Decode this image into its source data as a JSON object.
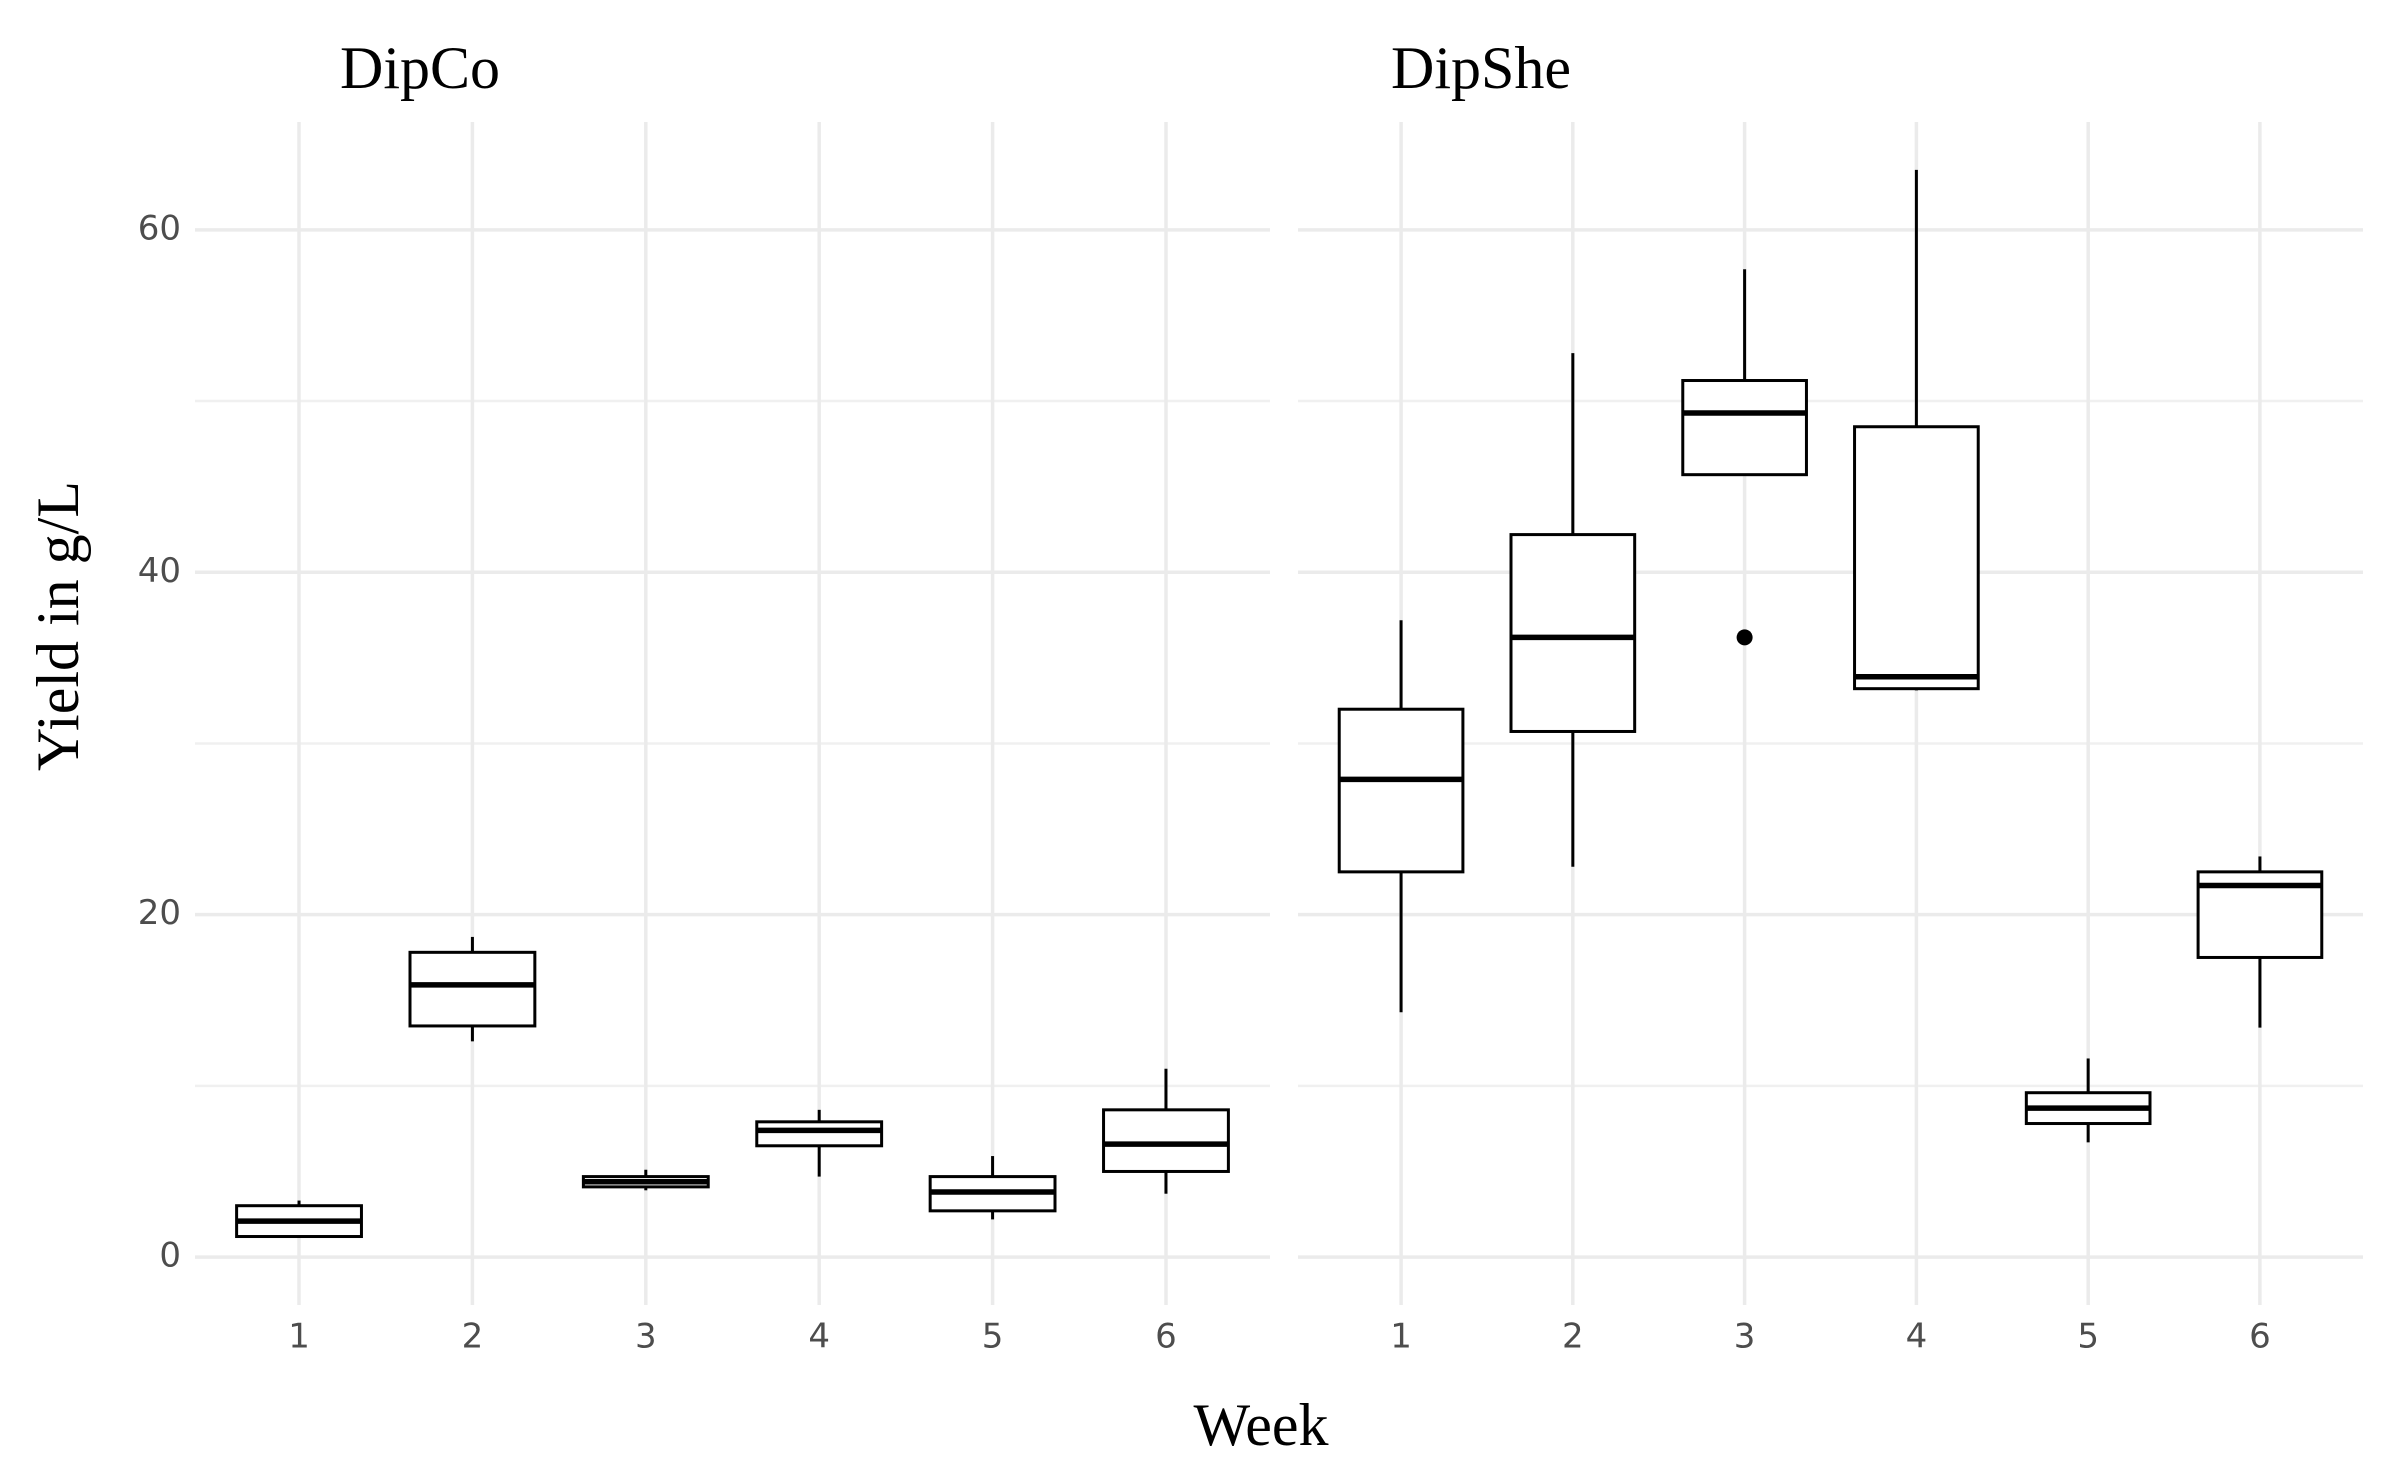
{
  "xlabel": "Week",
  "ylabel": "Yield in g/L",
  "chart_data": [
    {
      "type": "box",
      "title": "DipCo",
      "categories": [
        "1",
        "2",
        "3",
        "4",
        "5",
        "6"
      ],
      "min": [
        1.2,
        12.6,
        3.9,
        4.7,
        2.2,
        3.7
      ],
      "q1": [
        1.2,
        13.5,
        4.1,
        6.5,
        2.7,
        5.0
      ],
      "median": [
        2.1,
        15.9,
        4.4,
        7.4,
        3.8,
        6.6
      ],
      "q3": [
        3.0,
        17.8,
        4.7,
        7.9,
        4.7,
        8.6
      ],
      "max": [
        3.3,
        18.7,
        5.1,
        8.6,
        5.9,
        11.0
      ],
      "outliers": [
        [],
        [],
        [],
        [],
        [],
        []
      ],
      "ylim": [
        -2.8,
        66.3
      ],
      "yticks": [
        0,
        20,
        40,
        60
      ],
      "y_minor_grid": [
        10,
        30,
        50
      ],
      "grid": true,
      "color": "#000000"
    },
    {
      "type": "box",
      "title": "DipShe",
      "categories": [
        "1",
        "2",
        "3",
        "4",
        "5",
        "6"
      ],
      "min": [
        14.3,
        22.8,
        45.7,
        33.1,
        6.7,
        13.4
      ],
      "q1": [
        22.5,
        30.7,
        45.7,
        33.2,
        7.8,
        17.5
      ],
      "median": [
        27.9,
        36.2,
        49.3,
        33.9,
        8.7,
        21.7
      ],
      "q3": [
        32.0,
        42.2,
        51.2,
        48.5,
        9.6,
        22.5
      ],
      "max": [
        37.2,
        52.8,
        57.7,
        63.5,
        11.6,
        23.4
      ],
      "outliers": [
        [],
        [],
        [
          36.2
        ],
        [],
        [],
        []
      ],
      "ylim": [
        -2.8,
        66.3
      ],
      "yticks": [
        0,
        20,
        40,
        60
      ],
      "y_minor_grid": [
        10,
        30,
        50
      ],
      "grid": true,
      "color": "#000000"
    }
  ]
}
